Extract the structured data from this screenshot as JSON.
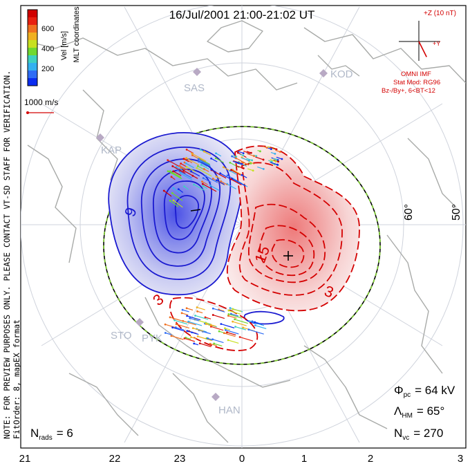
{
  "title": "16/Jul/2001 21:00-21:02 UT",
  "side_note_1": "NOTE: FOR PREVIEW PURPOSES ONLY. PLEASE CONTACT VT-SD STAFF FOR VERIFICATION.",
  "side_note_2": "FitOrder: 8, mapEX format",
  "colorbar": {
    "label": "Vel [m/s]",
    "coords": "MLT coordinates",
    "ticks": [
      "200",
      "400",
      "600"
    ],
    "colors": [
      "#0a2cf0",
      "#2e6cf5",
      "#33b0f0",
      "#3ed0c0",
      "#70d830",
      "#c8e020",
      "#f0b020",
      "#f07020",
      "#e82010",
      "#d00000"
    ]
  },
  "ref_vector": {
    "label": "1000 m/s",
    "color": "#d40000"
  },
  "imf": {
    "scale_label": "+Z (10 nT)",
    "y_label": "+Y",
    "source": "OMNI IMF",
    "model": "Stat Mod: RG96",
    "condition": "Bz-/By+, 6<BT<12",
    "by": 4,
    "bz": -8
  },
  "stations": [
    "SAS",
    "KOD",
    "KAP",
    "STO",
    "PYK",
    "HAN"
  ],
  "lat_labels": [
    "60°",
    "50°"
  ],
  "mlt_ticks": [
    "21",
    "22",
    "23",
    "0",
    "1",
    "2",
    "3"
  ],
  "stats": {
    "phi_label": "Φ",
    "phi_sub": "pc",
    "phi_value": "= 64 kV",
    "lambda_label": "Λ",
    "lambda_sub": "HM",
    "lambda_value": "= 65°",
    "nvc_label": "N",
    "nvc_sub": "vc",
    "nvc_value": "= 270",
    "nrads_label": "N",
    "nrads_sub": "rads",
    "nrads_value": "= 6"
  },
  "chart_data": {
    "type": "polar-convection-map",
    "mlt_range": [
      "21",
      "3"
    ],
    "heppner_maynard_boundary_deg": 65,
    "cross_polar_cap_potential_kV": 64,
    "potential_cells": [
      {
        "name": "negative",
        "color": "#1a1ad0",
        "min_label": "-",
        "contour_labels": [
          "9"
        ]
      },
      {
        "name": "positive",
        "color": "#d40000",
        "max_label": "+",
        "contour_labels": [
          "15",
          "3",
          "3"
        ]
      }
    ],
    "vector_count": 270,
    "radar_count": 6
  }
}
